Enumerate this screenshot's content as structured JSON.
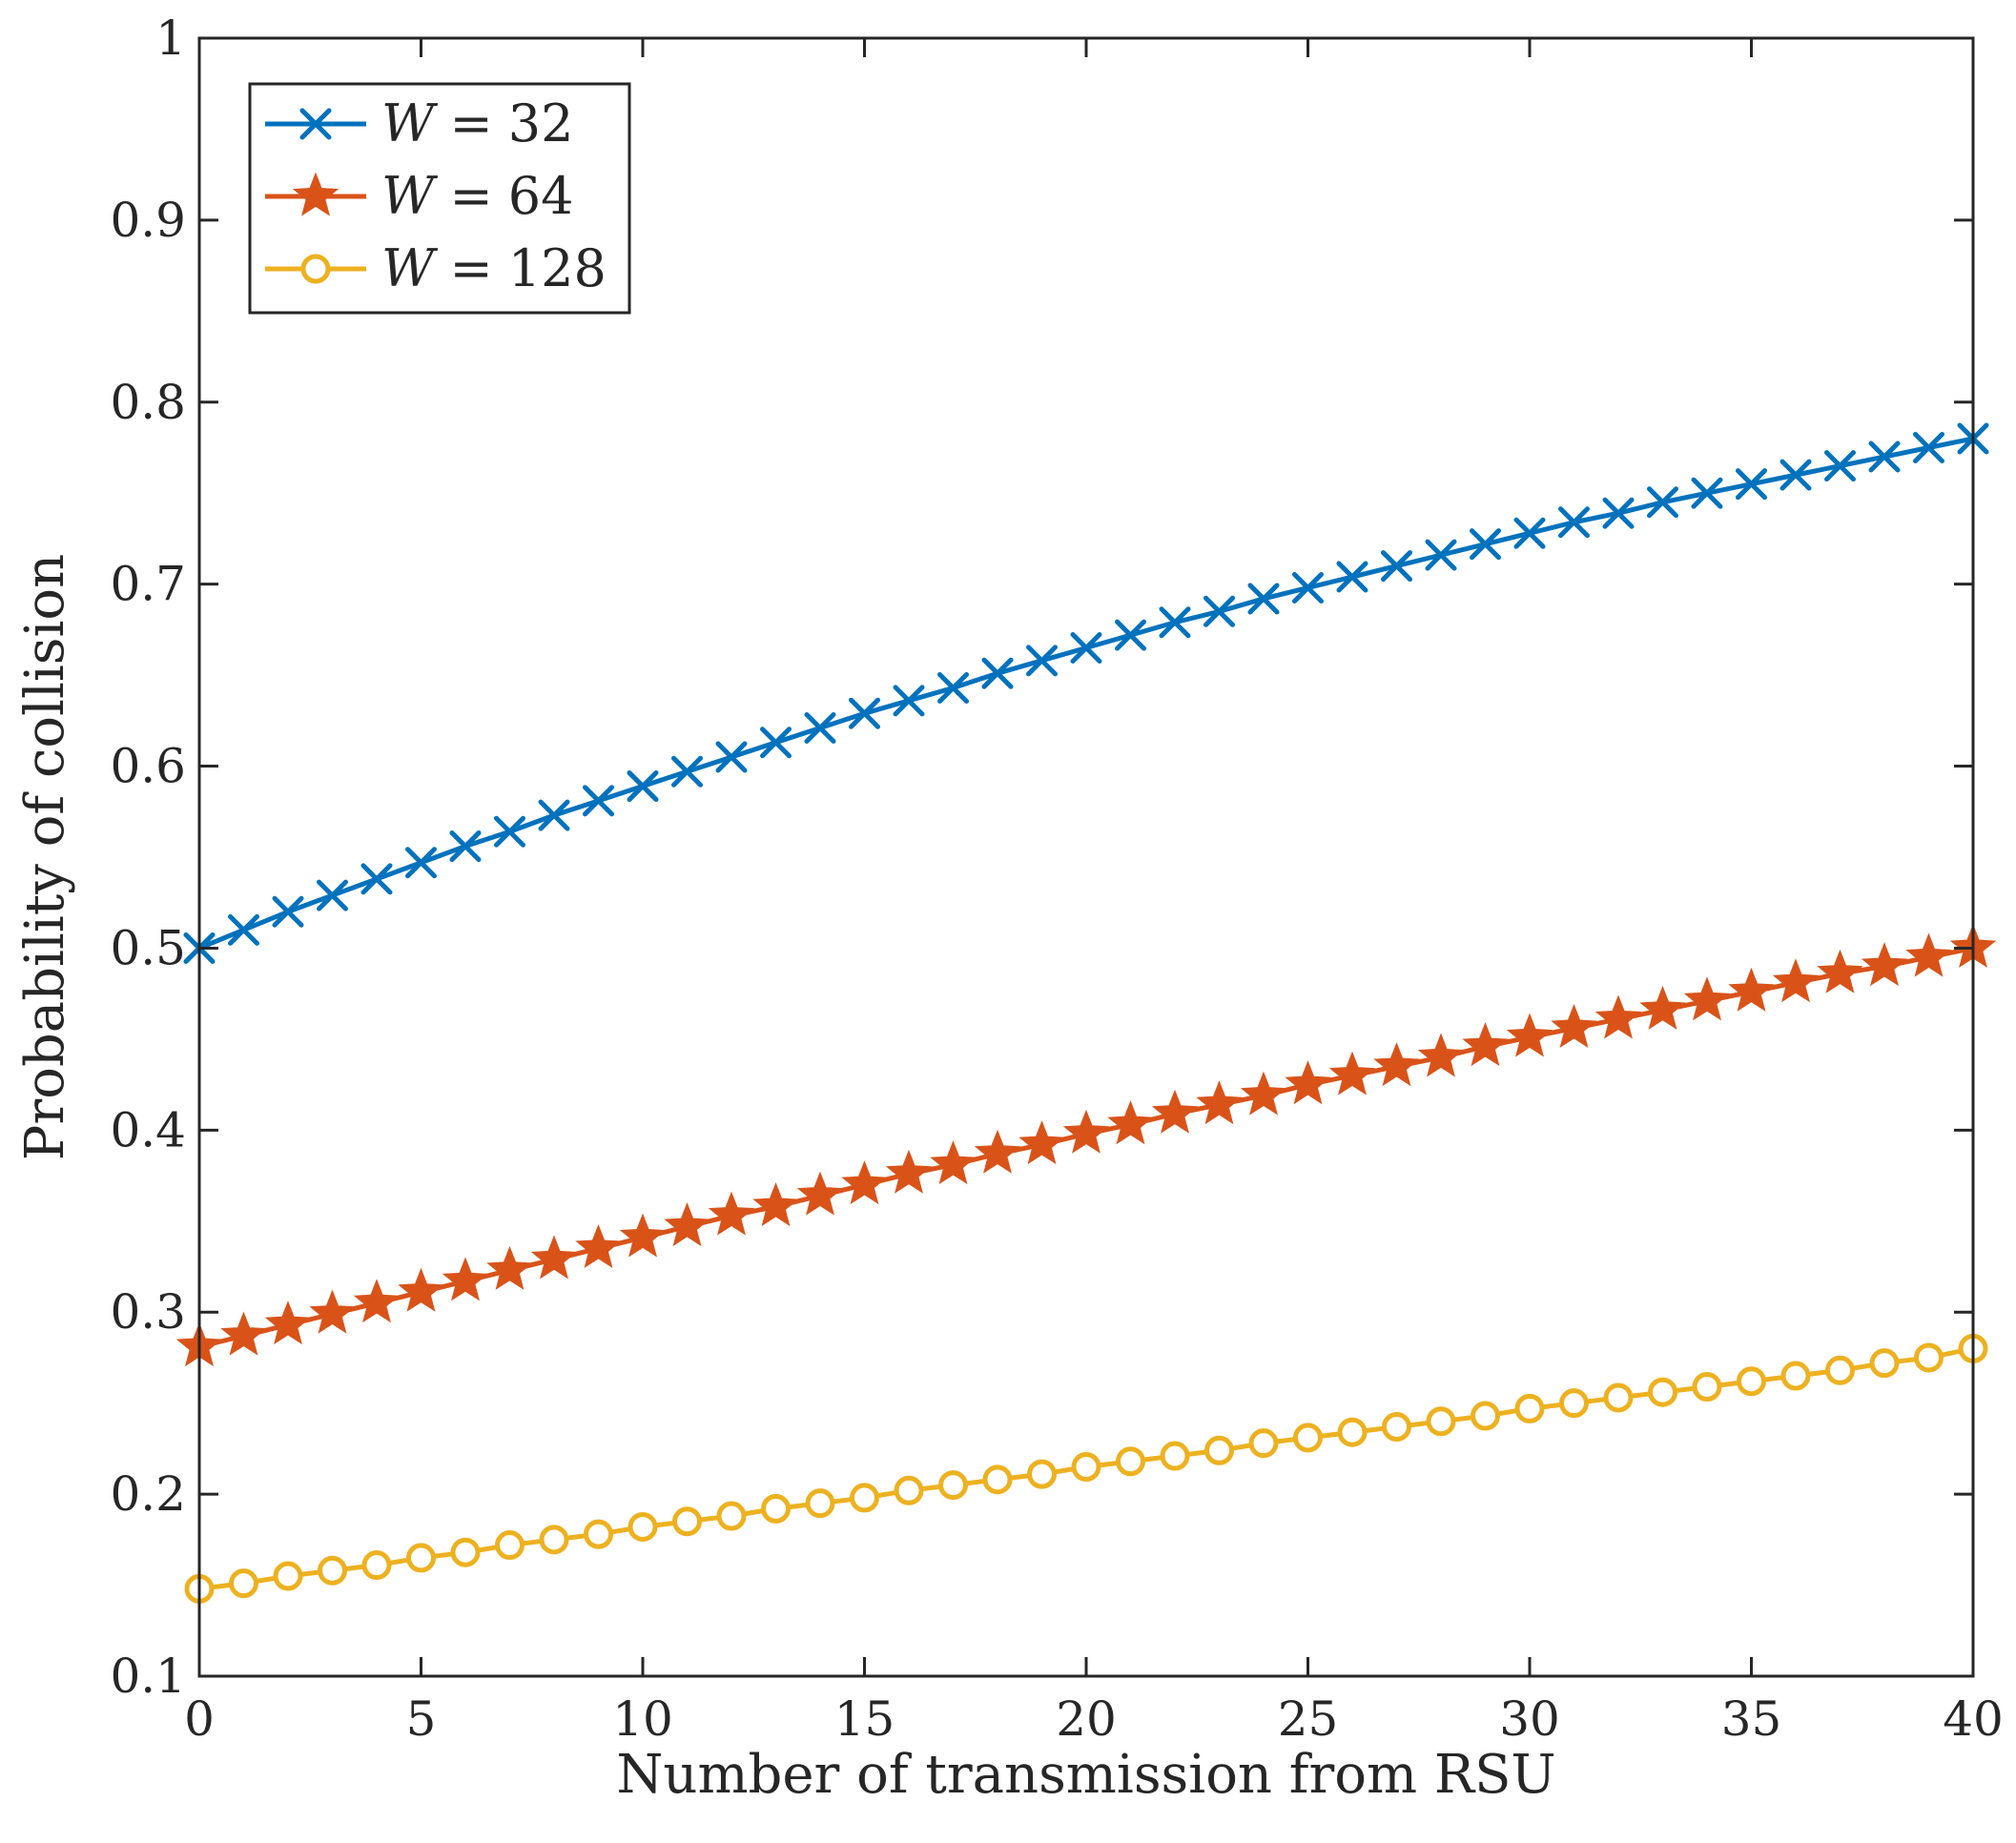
{
  "chart_data": {
    "type": "line",
    "title": "",
    "xlabel": "Number of transmission from RSU",
    "ylabel": "Probability of collision",
    "xlim": [
      0,
      40
    ],
    "ylim": [
      0.1,
      1
    ],
    "xticks": [
      0,
      5,
      10,
      15,
      20,
      25,
      30,
      35,
      40
    ],
    "xtick_labels": [
      "0",
      "5",
      "10",
      "15",
      "20",
      "25",
      "30",
      "35",
      "40"
    ],
    "yticks": [
      0.1,
      0.2,
      0.3,
      0.4,
      0.5,
      0.6,
      0.7,
      0.8,
      0.9,
      1
    ],
    "ytick_labels": [
      "0.1",
      "0.2",
      "0.3",
      "0.4",
      "0.5",
      "0.6",
      "0.7",
      "0.8",
      "0.9",
      "1"
    ],
    "grid": false,
    "legend_position": "top-left",
    "x": [
      0,
      1,
      2,
      3,
      4,
      5,
      6,
      7,
      8,
      9,
      10,
      11,
      12,
      13,
      14,
      15,
      16,
      17,
      18,
      19,
      20,
      21,
      22,
      23,
      24,
      25,
      26,
      27,
      28,
      29,
      30,
      31,
      32,
      33,
      34,
      35,
      36,
      37,
      38,
      39,
      40
    ],
    "series": [
      {
        "name": "W = 32",
        "marker": "x",
        "color": "#0072BD",
        "values": [
          0.5,
          0.51,
          0.52,
          0.529,
          0.538,
          0.547,
          0.556,
          0.564,
          0.573,
          0.581,
          0.589,
          0.597,
          0.605,
          0.613,
          0.621,
          0.629,
          0.636,
          0.643,
          0.651,
          0.658,
          0.665,
          0.672,
          0.679,
          0.685,
          0.692,
          0.698,
          0.704,
          0.71,
          0.716,
          0.722,
          0.728,
          0.734,
          0.739,
          0.745,
          0.75,
          0.755,
          0.76,
          0.765,
          0.77,
          0.775,
          0.78
        ]
      },
      {
        "name": "W = 64",
        "marker": "star",
        "color": "#D95319",
        "values": [
          0.281,
          0.287,
          0.293,
          0.299,
          0.305,
          0.311,
          0.317,
          0.323,
          0.329,
          0.335,
          0.341,
          0.347,
          0.353,
          0.358,
          0.364,
          0.37,
          0.376,
          0.381,
          0.387,
          0.392,
          0.398,
          0.403,
          0.409,
          0.414,
          0.419,
          0.425,
          0.43,
          0.435,
          0.44,
          0.446,
          0.451,
          0.456,
          0.461,
          0.466,
          0.471,
          0.476,
          0.481,
          0.486,
          0.49,
          0.495,
          0.5
        ]
      },
      {
        "name": "W = 128",
        "marker": "circle",
        "color": "#EDB120",
        "values": [
          0.148,
          0.151,
          0.155,
          0.158,
          0.161,
          0.165,
          0.168,
          0.172,
          0.175,
          0.178,
          0.182,
          0.185,
          0.188,
          0.192,
          0.195,
          0.198,
          0.202,
          0.205,
          0.208,
          0.211,
          0.215,
          0.218,
          0.221,
          0.224,
          0.228,
          0.231,
          0.234,
          0.237,
          0.24,
          0.243,
          0.247,
          0.25,
          0.253,
          0.256,
          0.259,
          0.262,
          0.265,
          0.268,
          0.272,
          0.275,
          0.28
        ]
      }
    ],
    "legend": {
      "entries": [
        {
          "var": "W",
          "eq": "=",
          "val": "32"
        },
        {
          "var": "W",
          "eq": "=",
          "val": "64"
        },
        {
          "var": "W",
          "eq": "=",
          "val": "128"
        }
      ]
    }
  }
}
